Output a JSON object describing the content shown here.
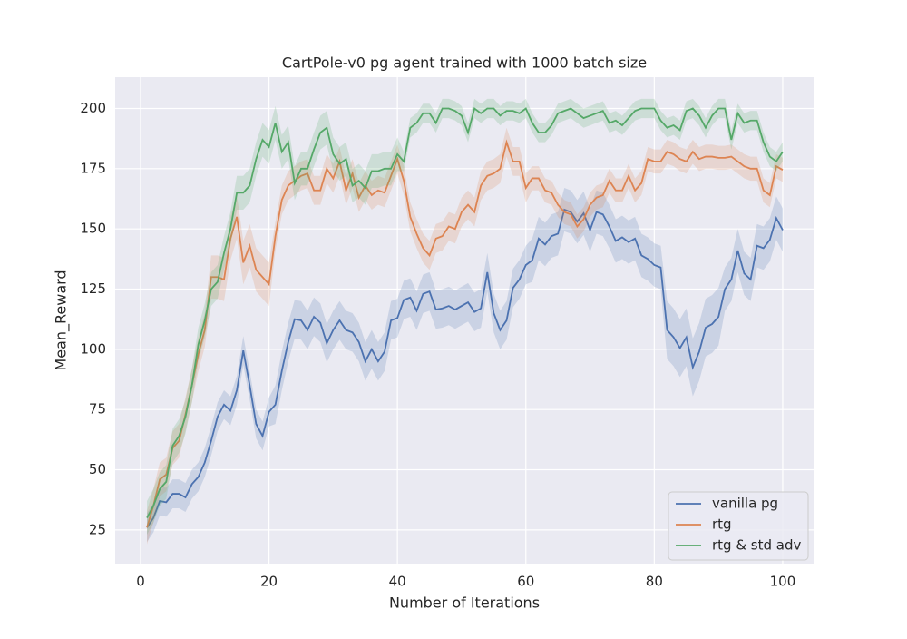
{
  "chart_data": {
    "type": "line",
    "title": "CartPole-v0 pg agent trained with 1000 batch size",
    "x_label": "Number of Iterations",
    "y_label": "Mean_Reward",
    "x": [
      1,
      2,
      3,
      4,
      5,
      6,
      7,
      8,
      9,
      10,
      11,
      12,
      13,
      14,
      15,
      16,
      17,
      18,
      19,
      20,
      21,
      22,
      23,
      24,
      25,
      26,
      27,
      28,
      29,
      30,
      31,
      32,
      33,
      34,
      35,
      36,
      37,
      38,
      39,
      40,
      41,
      42,
      43,
      44,
      45,
      46,
      47,
      48,
      49,
      50,
      51,
      52,
      53,
      54,
      55,
      56,
      57,
      58,
      59,
      60,
      61,
      62,
      63,
      64,
      65,
      66,
      67,
      68,
      69,
      70,
      71,
      72,
      73,
      74,
      75,
      76,
      77,
      78,
      79,
      80,
      81,
      82,
      83,
      84,
      85,
      86,
      87,
      88,
      89,
      90,
      91,
      92,
      93,
      94,
      95,
      96,
      97,
      98,
      99,
      100
    ],
    "xlim": [
      -3.95,
      104.95
    ],
    "xticks": [
      0,
      20,
      40,
      60,
      80,
      100
    ],
    "ylim": [
      11,
      213
    ],
    "yticks": [
      25,
      50,
      75,
      100,
      125,
      150,
      175,
      200
    ],
    "grid": true,
    "legend": "lower right",
    "background": "#eaeaf2",
    "series": [
      {
        "name": "vanilla pg",
        "color": "#4c72b0",
        "values": [
          26,
          30,
          37,
          36.5,
          40,
          40,
          38.5,
          44,
          47,
          53,
          62,
          72,
          77,
          74.5,
          83,
          99.5,
          85,
          69,
          64,
          74,
          77,
          91,
          103,
          112.5,
          112,
          108,
          113.5,
          111,
          102.5,
          108,
          112,
          108,
          107,
          103,
          95,
          100,
          95,
          99,
          112,
          113,
          120.5,
          121.5,
          116,
          123,
          124,
          116.5,
          117,
          118,
          116.5,
          118,
          119.5,
          115.5,
          117,
          132,
          115,
          108,
          112,
          125.5,
          129,
          135,
          137,
          146,
          143.5,
          147,
          148,
          158,
          157,
          153,
          156.5,
          149.5,
          157,
          156,
          151,
          145,
          146.5,
          144.5,
          146,
          139,
          137.5,
          135,
          134,
          108,
          105,
          100.5,
          105,
          92.5,
          99,
          109,
          110.5,
          113.5,
          125,
          129,
          141,
          131.5,
          129,
          143,
          142,
          145.5,
          154.5,
          149.5
        ],
        "errors": [
          6,
          6,
          6,
          6,
          6,
          6,
          6,
          6,
          6,
          6,
          6,
          6,
          6,
          6,
          6,
          6,
          6,
          6,
          6,
          6,
          8,
          8,
          8,
          8,
          8,
          8,
          8,
          8,
          8,
          8,
          8,
          8,
          8,
          8,
          8,
          8,
          8,
          8,
          8,
          8,
          8,
          8,
          8,
          8,
          8,
          8,
          8,
          8,
          8,
          8,
          8,
          8,
          8,
          8,
          8,
          8,
          8,
          8,
          8,
          8,
          9,
          9,
          9,
          9,
          9,
          9,
          9,
          9,
          9,
          9,
          9,
          9,
          9,
          9,
          9,
          9,
          9,
          9,
          9,
          9,
          9,
          12,
          12,
          12,
          12,
          12,
          12,
          12,
          12,
          12,
          9,
          9,
          9,
          9,
          9,
          9,
          9,
          9,
          9,
          9
        ]
      },
      {
        "name": "rtg",
        "color": "#dd8452",
        "values": [
          26,
          35,
          46,
          48,
          59,
          62,
          73,
          85,
          98,
          108,
          130,
          130,
          129,
          146,
          155,
          136,
          143,
          133,
          130,
          127,
          147,
          162,
          168,
          170,
          172,
          173,
          166,
          166,
          175,
          171,
          178,
          166,
          173,
          163,
          168,
          164,
          166,
          165,
          172,
          179,
          170,
          155,
          148,
          142,
          139,
          146,
          147,
          151,
          150,
          157,
          160,
          157,
          168,
          172,
          173,
          175,
          186,
          178,
          178,
          167,
          171,
          171,
          166,
          165,
          160,
          157,
          156,
          151,
          154,
          160,
          163,
          164,
          170,
          166,
          166,
          172,
          166,
          169,
          179,
          178,
          178,
          182,
          181,
          179,
          178,
          182,
          179,
          180,
          180,
          179.5,
          179.5,
          180,
          178,
          176,
          175,
          175,
          166,
          164,
          176,
          174.5
        ],
        "errors": [
          7,
          7,
          7,
          7,
          7,
          7,
          7,
          7,
          7,
          7,
          9,
          9,
          9,
          9,
          9,
          9,
          9,
          9,
          9,
          9,
          6,
          6,
          6,
          6,
          6,
          6,
          6,
          6,
          6,
          6,
          6,
          6,
          6,
          6,
          6,
          6,
          6,
          6,
          6,
          6,
          6,
          6,
          6,
          6,
          6,
          6,
          6,
          6,
          6,
          6,
          6,
          6,
          6,
          6,
          6,
          6,
          6,
          6,
          6,
          6,
          5,
          5,
          5,
          5,
          5,
          5,
          5,
          5,
          5,
          5,
          5,
          5,
          5,
          5,
          5,
          5,
          5,
          5,
          5,
          5,
          5,
          5,
          5,
          5,
          5,
          5,
          5,
          5,
          5,
          5,
          5,
          5,
          5,
          5,
          5,
          5,
          5,
          5,
          5,
          5
        ]
      },
      {
        "name": "rtg & std adv",
        "color": "#55a868",
        "values": [
          30,
          35,
          42,
          45,
          60,
          64,
          72,
          85,
          102,
          112,
          125,
          128,
          140,
          150,
          165,
          165,
          168,
          179,
          187,
          184,
          194,
          182,
          186,
          169,
          175,
          175,
          183,
          190,
          192,
          181,
          177,
          179,
          168,
          170,
          167,
          174,
          174,
          175,
          175,
          181,
          178,
          192,
          194,
          198,
          198,
          194,
          200,
          200,
          199,
          197,
          190,
          200,
          198,
          200,
          200,
          197,
          199,
          199,
          198,
          200,
          194,
          190,
          190,
          193,
          198,
          199,
          200,
          198,
          196,
          197,
          198,
          199,
          194,
          195,
          193,
          196,
          199,
          200,
          200,
          200,
          195,
          192,
          193,
          191,
          199,
          200,
          197,
          192,
          197,
          200,
          200,
          187,
          198,
          194,
          195,
          195,
          186,
          180,
          178,
          182
        ],
        "errors": [
          7,
          7,
          7,
          7,
          7,
          7,
          7,
          7,
          7,
          7,
          7,
          7,
          7,
          7,
          7,
          7,
          7,
          7,
          7,
          7,
          7,
          7,
          7,
          7,
          7,
          7,
          7,
          7,
          7,
          7,
          7,
          7,
          7,
          7,
          7,
          7,
          7,
          7,
          7,
          7,
          4,
          4,
          4,
          4,
          4,
          4,
          4,
          4,
          4,
          4,
          4,
          4,
          4,
          4,
          4,
          4,
          4,
          4,
          4,
          4,
          4,
          4,
          4,
          4,
          4,
          4,
          4,
          4,
          4,
          4,
          4,
          4,
          4,
          4,
          4,
          4,
          4,
          4,
          4,
          4,
          4,
          4,
          4,
          4,
          4,
          4,
          4,
          4,
          4,
          4,
          4,
          4,
          4,
          4,
          4,
          4,
          4,
          4,
          4,
          4
        ]
      }
    ]
  }
}
